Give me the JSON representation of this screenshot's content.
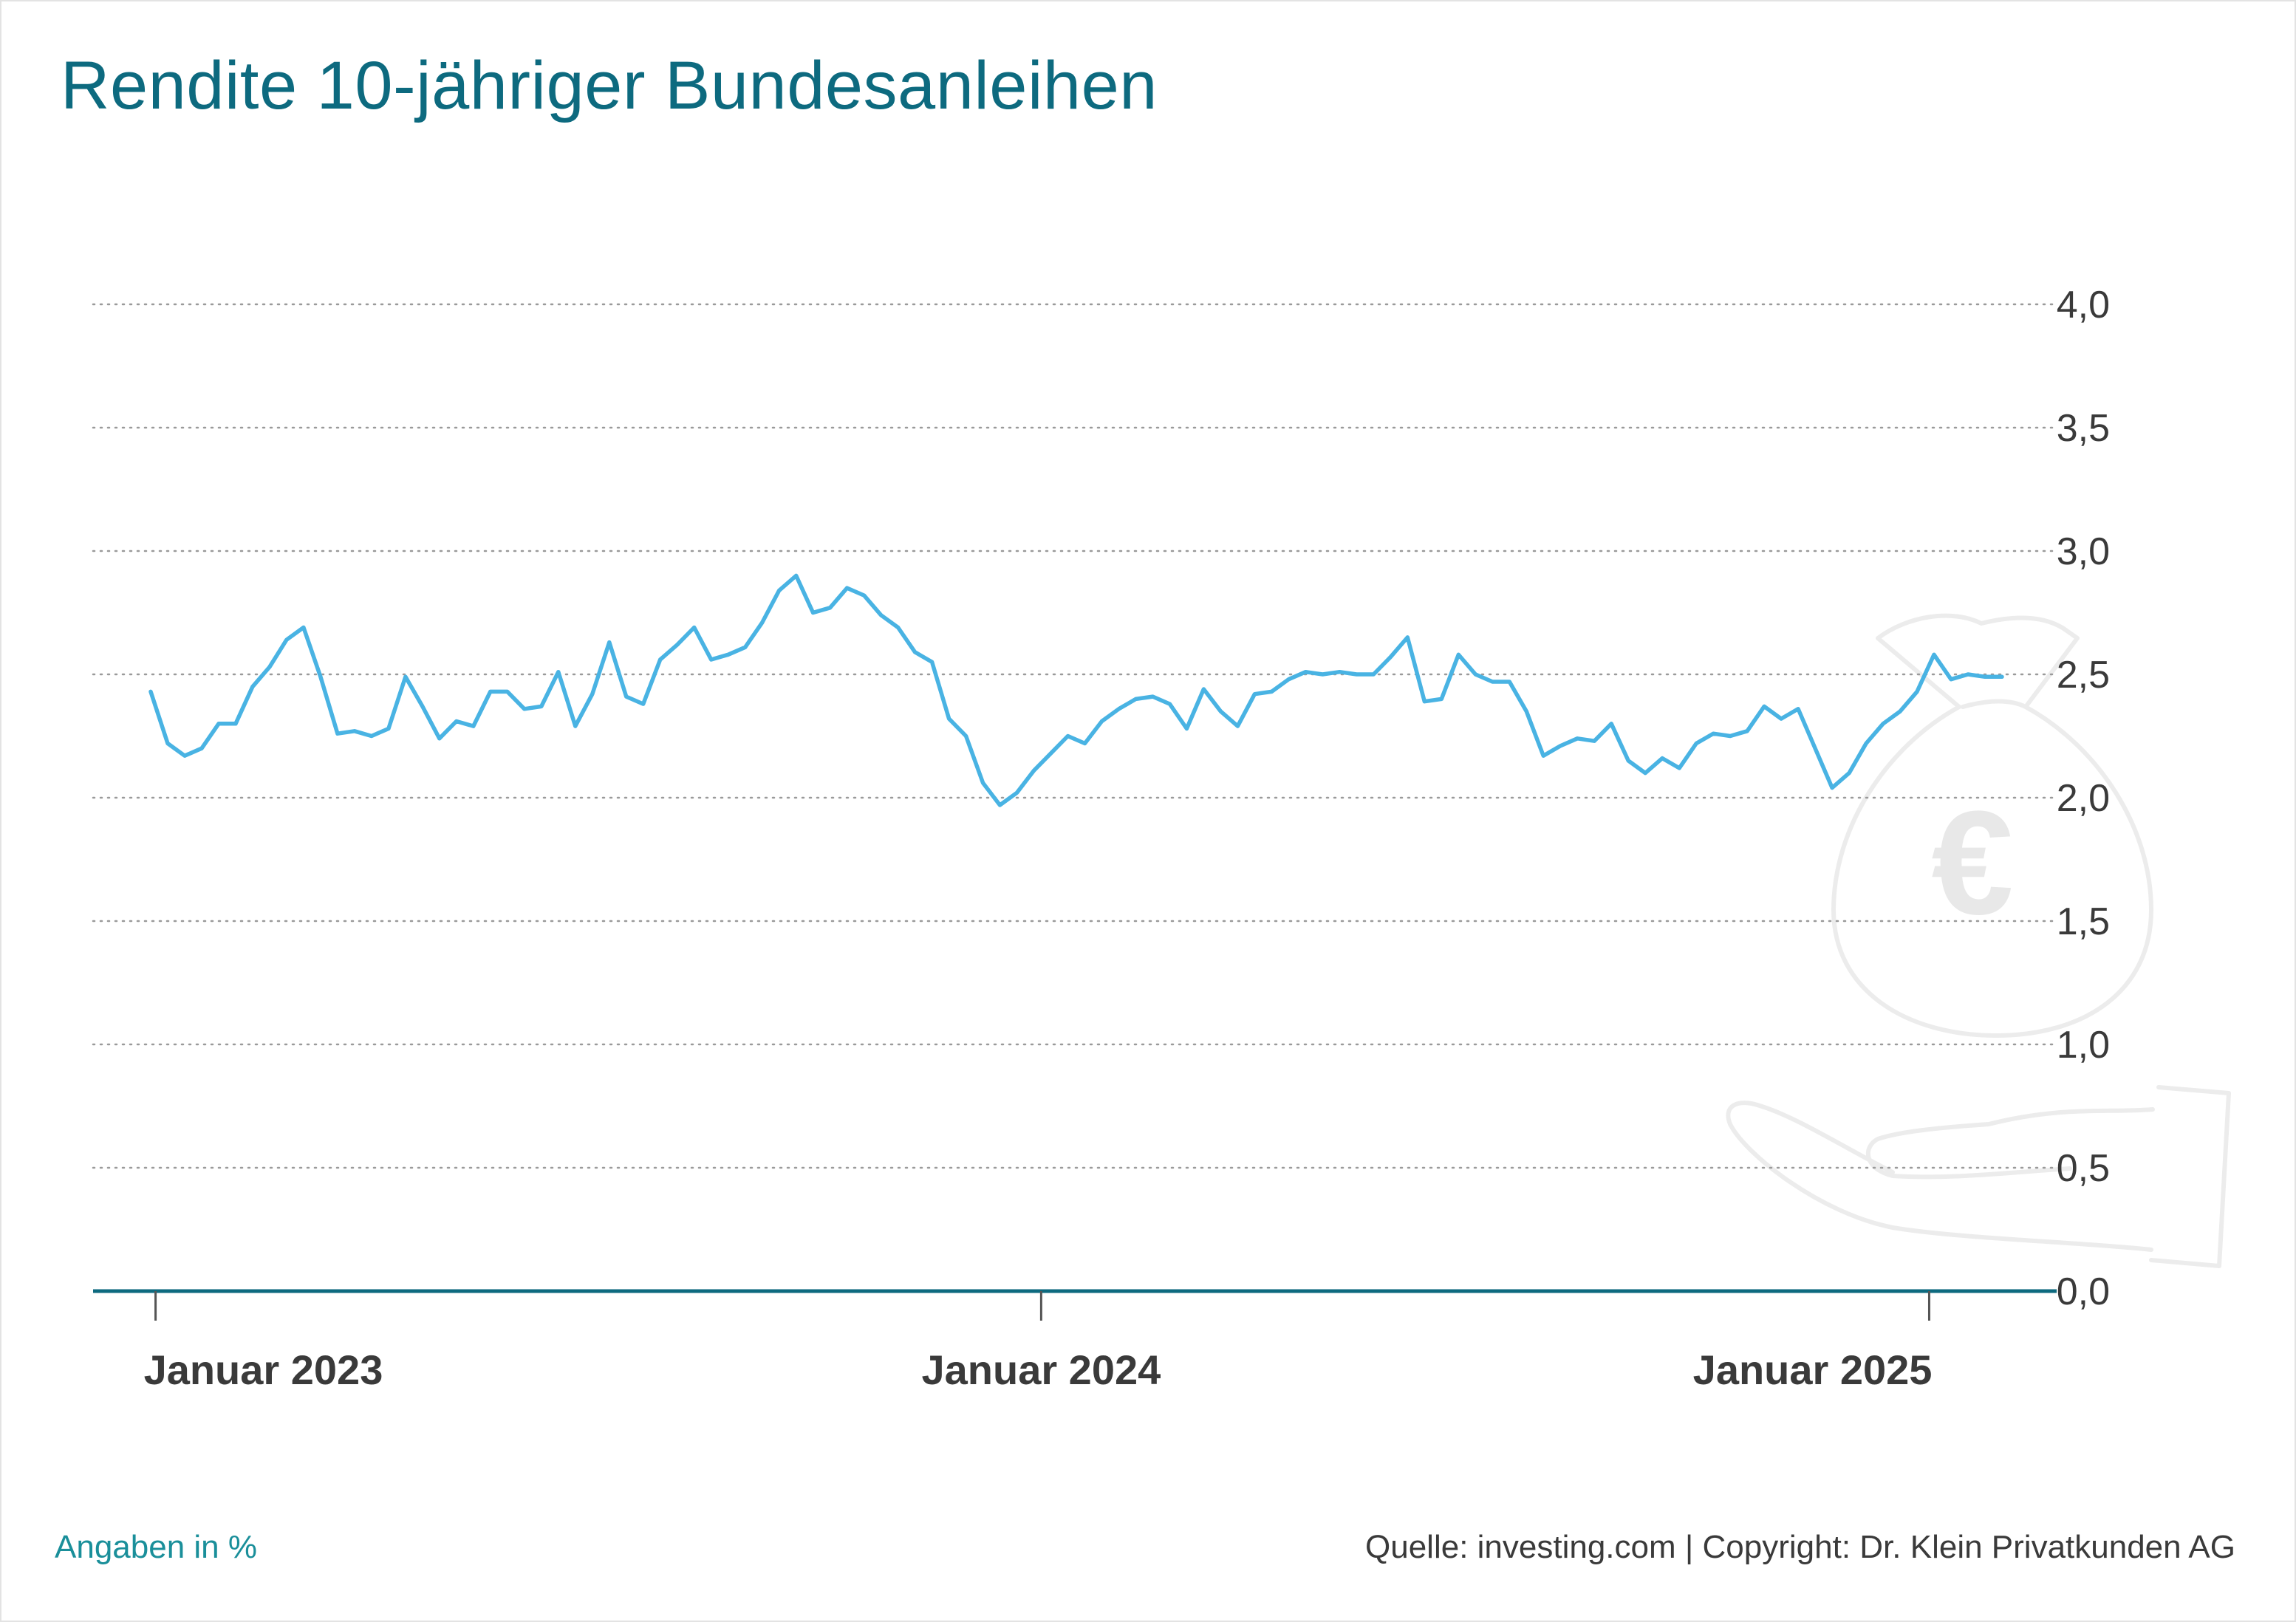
{
  "chart_data": {
    "type": "line",
    "title": "Rendite 10-jähriger Bundesanleihen",
    "xlabel": "",
    "ylabel": "",
    "ylim": [
      0,
      4
    ],
    "yticks": [
      "0,0",
      "0,5",
      "1,0",
      "1,5",
      "2,0",
      "2,5",
      "3,0",
      "3,5",
      "4,0"
    ],
    "xticks": [
      "Januar 2023",
      "Januar 2024",
      "Januar 2025"
    ],
    "grid": true,
    "colors": {
      "line": "#49b3e3",
      "axis": "#0d6a7f",
      "grid": "#9a9a9a"
    },
    "series": [
      {
        "name": "",
        "x": [
          "2022-12-30",
          "2023-01-06",
          "2023-01-13",
          "2023-01-20",
          "2023-01-27",
          "2023-02-03",
          "2023-02-10",
          "2023-02-17",
          "2023-02-24",
          "2023-03-03",
          "2023-03-10",
          "2023-03-17",
          "2023-03-24",
          "2023-03-31",
          "2023-04-07",
          "2023-04-14",
          "2023-04-21",
          "2023-04-28",
          "2023-05-05",
          "2023-05-12",
          "2023-05-19",
          "2023-05-26",
          "2023-06-02",
          "2023-06-09",
          "2023-06-16",
          "2023-06-23",
          "2023-06-30",
          "2023-07-07",
          "2023-07-14",
          "2023-07-21",
          "2023-07-28",
          "2023-08-04",
          "2023-08-11",
          "2023-08-18",
          "2023-08-25",
          "2023-09-01",
          "2023-09-08",
          "2023-09-15",
          "2023-09-22",
          "2023-09-29",
          "2023-10-06",
          "2023-10-13",
          "2023-10-20",
          "2023-10-27",
          "2023-11-03",
          "2023-11-10",
          "2023-11-17",
          "2023-11-24",
          "2023-12-01",
          "2023-12-08",
          "2023-12-15",
          "2023-12-22",
          "2023-12-29",
          "2024-01-05",
          "2024-01-12",
          "2024-01-19",
          "2024-01-26",
          "2024-02-02",
          "2024-02-09",
          "2024-02-16",
          "2024-02-23",
          "2024-03-01",
          "2024-03-08",
          "2024-03-15",
          "2024-03-22",
          "2024-03-29",
          "2024-04-05",
          "2024-04-12",
          "2024-04-19",
          "2024-04-26",
          "2024-05-03",
          "2024-05-10",
          "2024-05-17",
          "2024-05-24",
          "2024-05-31",
          "2024-06-07",
          "2024-06-14",
          "2024-06-21",
          "2024-06-28",
          "2024-07-05",
          "2024-07-12",
          "2024-07-19",
          "2024-07-26",
          "2024-08-02",
          "2024-08-09",
          "2024-08-16",
          "2024-08-23",
          "2024-08-30",
          "2024-09-06",
          "2024-09-13",
          "2024-09-20",
          "2024-09-27",
          "2024-10-04",
          "2024-10-11",
          "2024-10-18",
          "2024-10-25",
          "2024-11-01",
          "2024-11-08",
          "2024-11-15",
          "2024-11-22",
          "2024-11-29",
          "2024-12-06",
          "2024-12-13",
          "2024-12-20",
          "2024-12-27",
          "2025-01-03",
          "2025-01-10",
          "2025-01-17",
          "2025-01-24",
          "2025-01-31"
        ],
        "values": [
          2.43,
          2.22,
          2.17,
          2.2,
          2.3,
          2.3,
          2.45,
          2.53,
          2.64,
          2.69,
          2.49,
          2.26,
          2.27,
          2.25,
          2.28,
          2.49,
          2.37,
          2.24,
          2.31,
          2.29,
          2.43,
          2.43,
          2.36,
          2.37,
          2.51,
          2.29,
          2.42,
          2.63,
          2.41,
          2.38,
          2.56,
          2.62,
          2.69,
          2.56,
          2.58,
          2.61,
          2.71,
          2.84,
          2.9,
          2.75,
          2.77,
          2.85,
          2.82,
          2.74,
          2.69,
          2.59,
          2.55,
          2.32,
          2.25,
          2.06,
          1.97,
          2.02,
          2.11,
          2.18,
          2.25,
          2.22,
          2.31,
          2.36,
          2.4,
          2.41,
          2.38,
          2.28,
          2.44,
          2.35,
          2.29,
          2.42,
          2.43,
          2.48,
          2.51,
          2.5,
          2.51,
          2.5,
          2.5,
          2.57,
          2.65,
          2.39,
          2.4,
          2.58,
          2.5,
          2.47,
          2.47,
          2.35,
          2.17,
          2.21,
          2.24,
          2.23,
          2.3,
          2.15,
          2.1,
          2.16,
          2.12,
          2.22,
          2.26,
          2.25,
          2.27,
          2.37,
          2.32,
          2.36,
          2.2,
          2.04,
          2.1,
          2.22,
          2.3,
          2.35,
          2.43,
          2.58,
          2.48,
          2.5,
          2.49,
          2.49
        ]
      }
    ]
  },
  "footer": {
    "unit_note": "Angaben in %",
    "source": "Quelle: investing.com | Copyright: Dr. Klein Privatkunden AG"
  }
}
